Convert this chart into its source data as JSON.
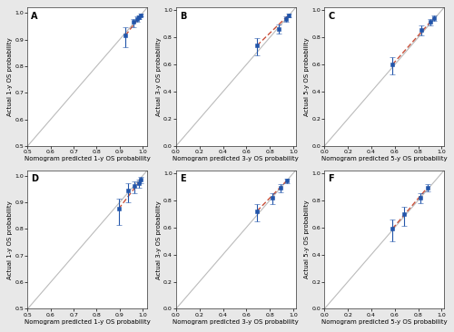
{
  "subplots": [
    {
      "label": "A",
      "xlabel": "Nomogram predicted 1-y OS probability",
      "ylabel": "Actual 1-y OS probability",
      "xlim": [
        0.5,
        1.02
      ],
      "ylim": [
        0.5,
        1.02
      ],
      "xticks": [
        0.5,
        0.6,
        0.7,
        0.8,
        0.9,
        1.0
      ],
      "yticks": [
        0.5,
        0.6,
        0.7,
        0.8,
        0.9,
        1.0
      ],
      "points_x": [
        0.925,
        0.96,
        0.975,
        0.985,
        0.993
      ],
      "points_y": [
        0.915,
        0.965,
        0.977,
        0.985,
        0.992
      ],
      "yerr_low": [
        0.045,
        0.018,
        0.012,
        0.008,
        0.006
      ],
      "yerr_high": [
        0.03,
        0.012,
        0.009,
        0.006,
        0.004
      ],
      "line_x": [
        0.925,
        0.993
      ],
      "line_y": [
        0.915,
        0.992
      ]
    },
    {
      "label": "B",
      "xlabel": "Nomogram predicted 3-y OS probability",
      "ylabel": "Actual 3-y OS probability",
      "xlim": [
        0.0,
        1.02
      ],
      "ylim": [
        0.0,
        1.02
      ],
      "xticks": [
        0.0,
        0.2,
        0.4,
        0.6,
        0.8,
        1.0
      ],
      "yticks": [
        0.0,
        0.2,
        0.4,
        0.6,
        0.8,
        1.0
      ],
      "points_x": [
        0.69,
        0.875,
        0.935,
        0.96
      ],
      "points_y": [
        0.74,
        0.865,
        0.935,
        0.965
      ],
      "yerr_low": [
        0.075,
        0.035,
        0.022,
        0.015
      ],
      "yerr_high": [
        0.055,
        0.028,
        0.018,
        0.012
      ],
      "line_x": [
        0.69,
        0.96
      ],
      "line_y": [
        0.74,
        0.965
      ]
    },
    {
      "label": "C",
      "xlabel": "Nomogram predicted 5-y OS probability",
      "ylabel": "Actual 5-y OS probability",
      "xlim": [
        0.0,
        1.02
      ],
      "ylim": [
        0.0,
        1.02
      ],
      "xticks": [
        0.0,
        0.2,
        0.4,
        0.6,
        0.8,
        1.0
      ],
      "yticks": [
        0.0,
        0.2,
        0.4,
        0.6,
        0.8,
        1.0
      ],
      "points_x": [
        0.58,
        0.83,
        0.9,
        0.935
      ],
      "points_y": [
        0.6,
        0.855,
        0.915,
        0.945
      ],
      "yerr_low": [
        0.075,
        0.04,
        0.028,
        0.022
      ],
      "yerr_high": [
        0.055,
        0.033,
        0.022,
        0.018
      ],
      "line_x": [
        0.58,
        0.935
      ],
      "line_y": [
        0.6,
        0.945
      ]
    },
    {
      "label": "D",
      "xlabel": "Nomogram predicted 1-y OS probability",
      "ylabel": "Actual 1-y OS probability",
      "xlim": [
        0.5,
        1.02
      ],
      "ylim": [
        0.5,
        1.02
      ],
      "xticks": [
        0.5,
        0.6,
        0.7,
        0.8,
        0.9,
        1.0
      ],
      "yticks": [
        0.5,
        0.6,
        0.7,
        0.8,
        0.9,
        1.0
      ],
      "points_x": [
        0.895,
        0.935,
        0.965,
        0.982,
        0.993
      ],
      "points_y": [
        0.875,
        0.945,
        0.96,
        0.972,
        0.985
      ],
      "yerr_low": [
        0.06,
        0.045,
        0.025,
        0.018,
        0.012
      ],
      "yerr_high": [
        0.04,
        0.028,
        0.018,
        0.013,
        0.009
      ],
      "line_x": [
        0.895,
        0.993
      ],
      "line_y": [
        0.875,
        0.985
      ]
    },
    {
      "label": "E",
      "xlabel": "Nomogram predicted 3-y OS probability",
      "ylabel": "Actual 3-y OS probability",
      "xlim": [
        0.0,
        1.02
      ],
      "ylim": [
        0.0,
        1.02
      ],
      "xticks": [
        0.0,
        0.2,
        0.4,
        0.6,
        0.8,
        1.0
      ],
      "yticks": [
        0.0,
        0.2,
        0.4,
        0.6,
        0.8,
        1.0
      ],
      "points_x": [
        0.69,
        0.82,
        0.895,
        0.945
      ],
      "points_y": [
        0.72,
        0.82,
        0.895,
        0.945
      ],
      "yerr_low": [
        0.075,
        0.045,
        0.035,
        0.022
      ],
      "yerr_high": [
        0.055,
        0.032,
        0.025,
        0.016
      ],
      "line_x": [
        0.69,
        0.945
      ],
      "line_y": [
        0.72,
        0.945
      ]
    },
    {
      "label": "F",
      "xlabel": "Nomogram predicted 5-y OS probability",
      "ylabel": "Actual 5-y OS probability",
      "xlim": [
        0.0,
        1.02
      ],
      "ylim": [
        0.0,
        1.02
      ],
      "xticks": [
        0.0,
        0.2,
        0.4,
        0.6,
        0.8,
        1.0
      ],
      "yticks": [
        0.0,
        0.2,
        0.4,
        0.6,
        0.8,
        1.0
      ],
      "points_x": [
        0.58,
        0.68,
        0.82,
        0.88
      ],
      "points_y": [
        0.59,
        0.695,
        0.82,
        0.895
      ],
      "yerr_low": [
        0.09,
        0.085,
        0.042,
        0.032
      ],
      "yerr_high": [
        0.065,
        0.058,
        0.035,
        0.025
      ],
      "line_x": [
        0.58,
        0.88
      ],
      "line_y": [
        0.59,
        0.895
      ]
    }
  ],
  "point_color": "#2255aa",
  "line_color": "#c8503a",
  "ref_color": "#bbbbbb",
  "marker": "s",
  "markersize": 3,
  "capsize": 2,
  "elinewidth": 0.8,
  "label_fontsize": 5.0,
  "tick_fontsize": 4.5,
  "panel_label_fontsize": 7,
  "bg_color": "#ffffff",
  "outer_bg": "#e8e8e8",
  "spine_color": "#333333"
}
